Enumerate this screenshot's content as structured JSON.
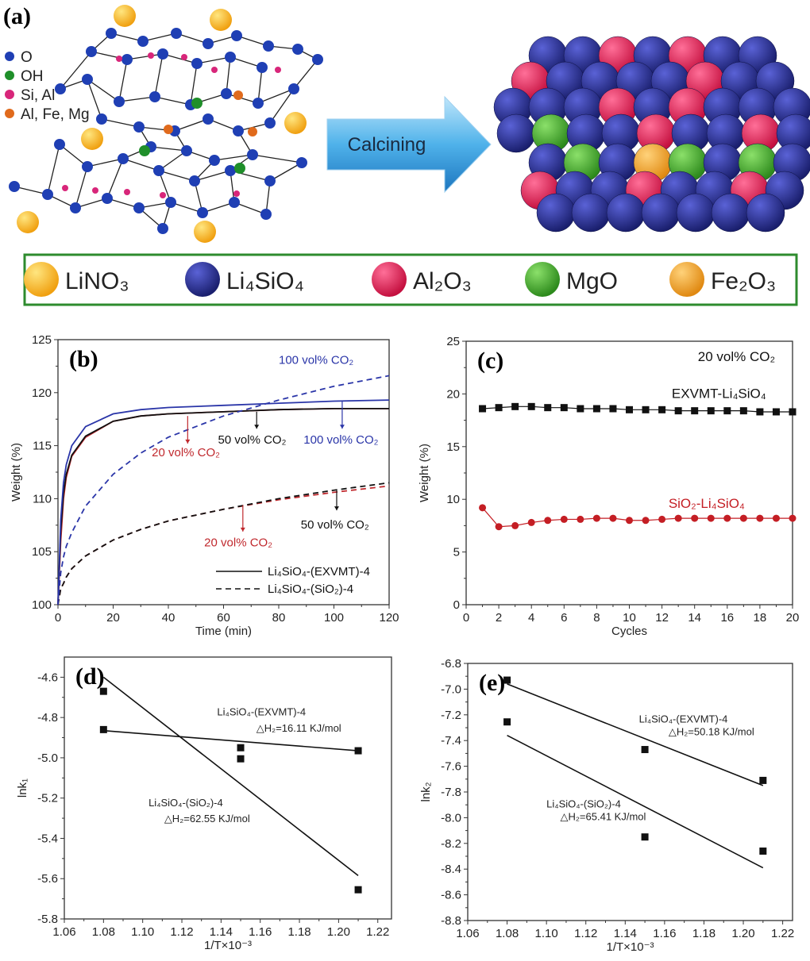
{
  "panel_a": {
    "label": "(a)",
    "atom_legend": [
      {
        "name": "O",
        "color": "#1f3fb4"
      },
      {
        "name": "OH",
        "color": "#1f8f2a"
      },
      {
        "name": "Si, Al",
        "color": "#d8267a"
      },
      {
        "name": "Al, Fe, Mg",
        "color": "#e06a1c"
      }
    ],
    "arrow_label": "Calcining",
    "legend": [
      {
        "name": "LiNO₃",
        "color": "#f5b414"
      },
      {
        "name": "Li₄SiO₄",
        "color": "#2a2f8c"
      },
      {
        "name": "Al₂O₃",
        "color": "#e8245e"
      },
      {
        "name": "MgO",
        "color": "#4cad2e"
      },
      {
        "name": "Fe₂O₃",
        "color": "#f5a52a"
      }
    ],
    "legend_border_color": "#2e8b2e"
  },
  "chart_data": [
    {
      "id": "b",
      "label": "(b)",
      "type": "line",
      "xlabel": "Time (min)",
      "ylabel": "Weight (%)",
      "xlim": [
        0,
        120
      ],
      "ylim": [
        100,
        125
      ],
      "xticks": [
        0,
        20,
        40,
        60,
        80,
        100,
        120
      ],
      "yticks": [
        100,
        105,
        110,
        115,
        120,
        125
      ],
      "x": [
        0,
        1,
        2,
        3,
        5,
        10,
        20,
        30,
        40,
        60,
        80,
        100,
        120
      ],
      "series": [
        {
          "name": "Li₄SiO₄-(EXVMT)-4, 20 vol% CO₂",
          "color": "#c0282d",
          "dash": false,
          "values": [
            100,
            106,
            110,
            112,
            114,
            115.8,
            117.3,
            117.8,
            118.0,
            118.2,
            118.4,
            118.5,
            118.5
          ]
        },
        {
          "name": "Li₄SiO₄-(EXVMT)-4, 50 vol% CO₂",
          "color": "#111111",
          "dash": false,
          "values": [
            100,
            107,
            110.5,
            112.3,
            114.1,
            115.9,
            117.3,
            117.8,
            118.0,
            118.2,
            118.4,
            118.5,
            118.5
          ]
        },
        {
          "name": "Li₄SiO₄-(EXVMT)-4, 100 vol% CO₂",
          "color": "#2a35a8",
          "dash": false,
          "values": [
            100,
            108,
            111.5,
            113.2,
            115,
            116.8,
            118.0,
            118.4,
            118.6,
            118.8,
            119.0,
            119.2,
            119.3
          ]
        },
        {
          "name": "Li₄SiO₄-(SiO₂)-4, 20 vol% CO₂",
          "color": "#c0282d",
          "dash": true,
          "values": [
            100,
            101.5,
            102,
            102.6,
            103.4,
            104.6,
            106.1,
            107.1,
            107.9,
            109.0,
            109.9,
            110.6,
            111.2
          ]
        },
        {
          "name": "Li₄SiO₄-(SiO₂)-4, 50 vol% CO₂",
          "color": "#111111",
          "dash": true,
          "values": [
            100,
            101.5,
            102,
            102.6,
            103.4,
            104.6,
            106.1,
            107.1,
            107.9,
            109.0,
            110.0,
            110.8,
            111.5
          ]
        },
        {
          "name": "Li₄SiO₄-(SiO₂)-4, 100 vol% CO₂",
          "color": "#2a35a8",
          "dash": true,
          "values": [
            100,
            103,
            104.5,
            105.5,
            106.8,
            109.3,
            112.3,
            114.3,
            115.8,
            117.8,
            119.3,
            120.6,
            121.6
          ]
        }
      ],
      "legend": [
        "Li₄SiO₄-(EXVMT)-4",
        "Li₄SiO₄-(SiO₂)-4"
      ],
      "legend_position": "bottom-right",
      "annotations": [
        {
          "text": "100 vol% CO₂",
          "color": "#2a35a8",
          "x": 80,
          "y": 122.7
        },
        {
          "text": "50 vol% CO₂",
          "color": "#111111",
          "x": 58,
          "y": 115.2
        },
        {
          "text": "100 vol% CO₂",
          "color": "#2a35a8",
          "x": 89,
          "y": 115.2
        },
        {
          "text": "20 vol% CO₂",
          "color": "#c0282d",
          "x": 34,
          "y": 114
        },
        {
          "text": "50 vol% CO₂",
          "color": "#111111",
          "x": 88,
          "y": 107.2
        },
        {
          "text": "20 vol% CO₂",
          "color": "#c0282d",
          "x": 53,
          "y": 105.5
        }
      ]
    },
    {
      "id": "c",
      "label": "(c)",
      "type": "line",
      "xlabel": "Cycles",
      "ylabel": "Weight (%)",
      "xlim": [
        0,
        20
      ],
      "ylim": [
        0,
        25
      ],
      "xticks": [
        0,
        2,
        4,
        6,
        8,
        10,
        12,
        14,
        16,
        18,
        20
      ],
      "yticks": [
        0,
        5,
        10,
        15,
        20,
        25
      ],
      "x": [
        1,
        2,
        3,
        4,
        5,
        6,
        7,
        8,
        9,
        10,
        11,
        12,
        13,
        14,
        15,
        16,
        17,
        18,
        19,
        20
      ],
      "series": [
        {
          "name": "EXVMT-Li₄SiO₄",
          "color": "#111111",
          "marker": "square",
          "values": [
            18.6,
            18.7,
            18.8,
            18.8,
            18.7,
            18.7,
            18.6,
            18.6,
            18.6,
            18.5,
            18.5,
            18.5,
            18.4,
            18.4,
            18.4,
            18.4,
            18.4,
            18.3,
            18.3,
            18.3
          ]
        },
        {
          "name": "SiO₂-Li₄SiO₄",
          "color": "#c41e24",
          "marker": "circle",
          "values": [
            9.2,
            7.4,
            7.5,
            7.8,
            8.0,
            8.1,
            8.1,
            8.2,
            8.2,
            8.0,
            8.0,
            8.1,
            8.2,
            8.2,
            8.2,
            8.2,
            8.2,
            8.2,
            8.2,
            8.2
          ]
        }
      ],
      "annotations": [
        {
          "text": "20 vol% CO₂",
          "color": "#111111",
          "x": 14.2,
          "y": 23.1
        },
        {
          "text": "EXVMT-Li₄SiO₄",
          "color": "#111111",
          "x": 12.6,
          "y": 19.6
        },
        {
          "text": "SiO₂-Li₄SiO₄",
          "color": "#c41e24",
          "x": 12.4,
          "y": 9.2
        }
      ]
    },
    {
      "id": "d",
      "label": "(d)",
      "type": "scatter",
      "xlabel": "1/T×10⁻³",
      "ylabel": "lnk₁",
      "xlim": [
        1.06,
        1.227
      ],
      "ylim": [
        -5.8,
        -4.5
      ],
      "xticks": [
        1.06,
        1.08,
        1.1,
        1.12,
        1.14,
        1.16,
        1.18,
        1.2,
        1.22
      ],
      "yticks": [
        -5.8,
        -5.6,
        -5.4,
        -5.2,
        -5.0,
        -4.8,
        -4.6
      ],
      "series": [
        {
          "name": "Li₄SiO₄-(EXVMT)-4",
          "points": [
            [
              1.08,
              -4.86
            ],
            [
              1.15,
              -4.95
            ],
            [
              1.21,
              -4.965
            ]
          ],
          "fit": [
            [
              1.08,
              -4.865
            ],
            [
              1.21,
              -4.965
            ]
          ]
        },
        {
          "name": "Li₄SiO₄-(SiO₂)-4",
          "points": [
            [
              1.08,
              -4.67
            ],
            [
              1.15,
              -5.005
            ],
            [
              1.21,
              -5.655
            ]
          ],
          "fit": [
            [
              1.08,
              -4.6
            ],
            [
              1.21,
              -5.585
            ]
          ]
        }
      ],
      "annotations": [
        {
          "text": "Li₄SiO₄-(EXVMT)-4",
          "x": 1.138,
          "y": -4.79
        },
        {
          "text": "△H₂=16.11 KJ/mol",
          "x": 1.158,
          "y": -4.87
        },
        {
          "text": "Li₄SiO₄-(SiO₂)-4",
          "x": 1.103,
          "y": -5.24
        },
        {
          "text": "△H₂=62.55 KJ/mol",
          "x": 1.111,
          "y": -5.32
        }
      ]
    },
    {
      "id": "e",
      "label": "(e)",
      "type": "scatter",
      "xlabel": "1/T×10⁻³",
      "ylabel": "lnk₂",
      "xlim": [
        1.06,
        1.225
      ],
      "ylim": [
        -8.8,
        -6.8
      ],
      "xticks": [
        1.06,
        1.08,
        1.1,
        1.12,
        1.14,
        1.16,
        1.18,
        1.2,
        1.22
      ],
      "yticks": [
        -8.8,
        -8.6,
        -8.4,
        -8.2,
        -8.0,
        -7.8,
        -7.6,
        -7.4,
        -7.2,
        -7.0,
        -6.8
      ],
      "series": [
        {
          "name": "Li₄SiO₄-(EXVMT)-4",
          "points": [
            [
              1.08,
              -6.93
            ],
            [
              1.15,
              -7.47
            ],
            [
              1.21,
              -7.71
            ]
          ],
          "fit": [
            [
              1.08,
              -6.96
            ],
            [
              1.21,
              -7.75
            ]
          ]
        },
        {
          "name": "Li₄SiO₄-(SiO₂)-4",
          "points": [
            [
              1.08,
              -7.255
            ],
            [
              1.15,
              -8.15
            ],
            [
              1.21,
              -8.26
            ]
          ],
          "fit": [
            [
              1.08,
              -7.36
            ],
            [
              1.21,
              -8.39
            ]
          ]
        }
      ],
      "annotations": [
        {
          "text": "Li₄SiO₄-(EXVMT)-4",
          "x": 1.147,
          "y": -7.26
        },
        {
          "text": "△H₂=50.18 KJ/mol",
          "x": 1.162,
          "y": -7.36
        },
        {
          "text": "Li₄SiO₄-(SiO₂)-4",
          "x": 1.1,
          "y": -7.92
        },
        {
          "text": "△H₂=65.41 KJ/mol",
          "x": 1.107,
          "y": -8.02
        }
      ]
    }
  ]
}
